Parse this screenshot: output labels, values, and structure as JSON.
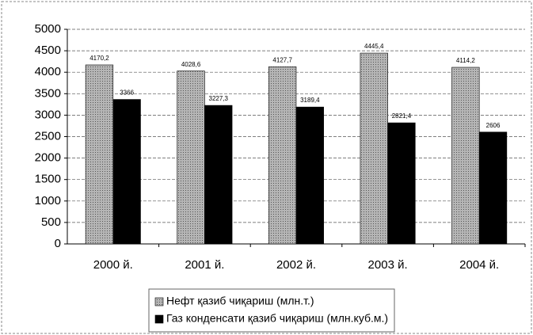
{
  "chart_data": {
    "type": "bar",
    "categories": [
      "2000 й.",
      "2001 й.",
      "2002 й.",
      "2003 й.",
      "2004 й."
    ],
    "series": [
      {
        "name": "Нефт қазиб чиқариш (млн.т.)",
        "color": "#9a9a9a",
        "values": [
          4170.2,
          4028.6,
          4127.7,
          4445.4,
          4114.2
        ],
        "value_labels": [
          "4170,2",
          "4028,6",
          "4127,7",
          "4445,4",
          "4114,2"
        ]
      },
      {
        "name": "Газ конденсати қазиб чиқариш (млн.куб.м.)",
        "color": "#000000",
        "values": [
          3366,
          3227.3,
          3189.4,
          2821.4,
          2606
        ],
        "value_labels": [
          "3366",
          "3227,3",
          "3189,4",
          "2821,4",
          "2606"
        ]
      }
    ],
    "ylim": [
      0,
      5000
    ],
    "yticks": [
      0,
      500,
      1000,
      1500,
      2000,
      2500,
      3000,
      3500,
      4000,
      4500,
      5000
    ],
    "grid": true,
    "legend": "bottom"
  }
}
